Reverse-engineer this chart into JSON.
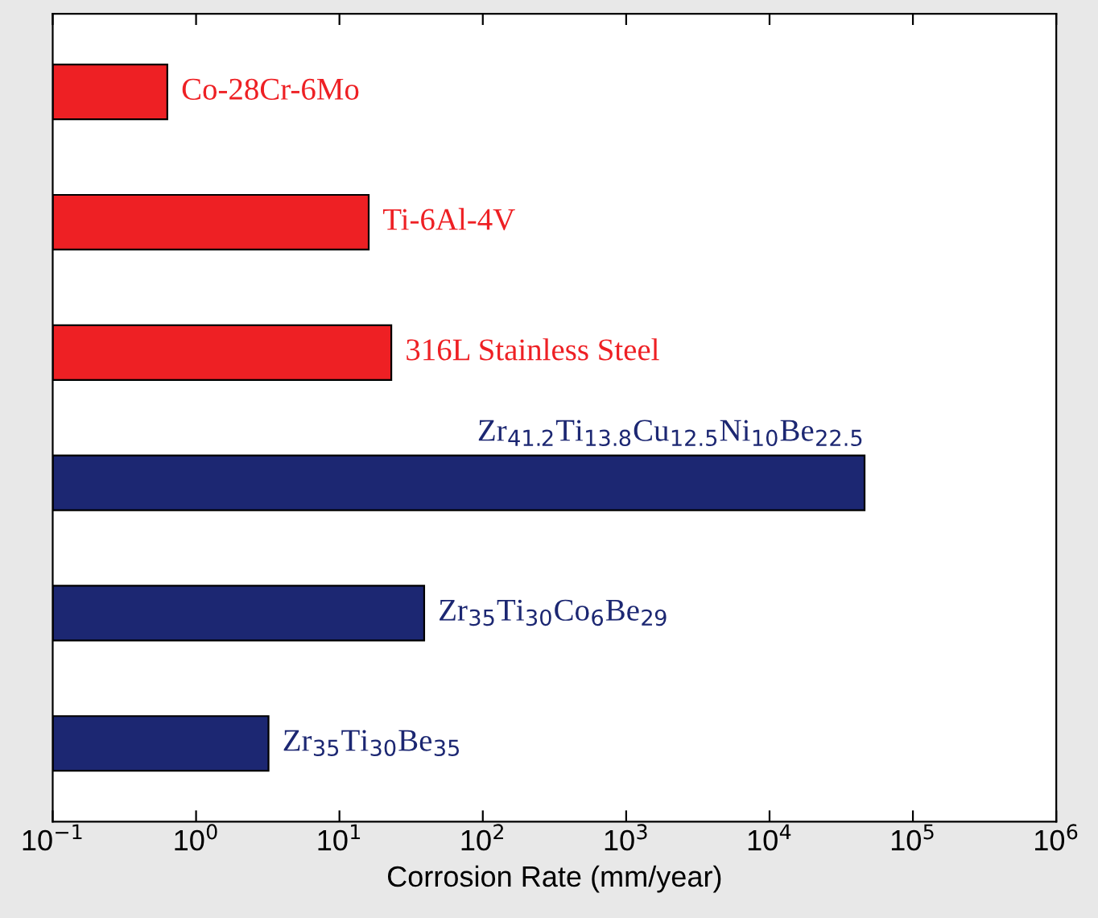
{
  "chart_data": {
    "type": "bar",
    "orientation": "horizontal",
    "xlabel": "Corrosion Rate (mm/year)",
    "categories": [
      "Co-28Cr-6Mo",
      "Ti-6Al-4V",
      "316L Stainless Steel",
      "Zr$_{41.2}$Ti$_{13.8}$Cu$_{12.5}$Ni$_{10}$Be$_{22.5}$",
      "Zr$_{35}$Ti$_{30}$Co$_{6}$Be$_{29}$",
      "Zr$_{35}$Ti$_{30}$Be$_{35}$"
    ],
    "values": [
      0.63,
      16,
      23,
      46000,
      39,
      3.2
    ],
    "colors": [
      "#ee2024",
      "#ee2024",
      "#ee2024",
      "#1c2772",
      "#1c2772",
      "#1c2772"
    ],
    "log": "x",
    "xlim": [
      0.1,
      1000000
    ],
    "xticks": [
      {
        "value": 0.1,
        "label": "10$^{−1}$"
      },
      {
        "value": 1,
        "label": "10$^{0}$"
      },
      {
        "value": 10,
        "label": "10$^{1}$"
      },
      {
        "value": 100,
        "label": "10$^{2}$"
      },
      {
        "value": 1000,
        "label": "10$^{3}$"
      },
      {
        "value": 10000,
        "label": "10$^{4}$"
      },
      {
        "value": 100000,
        "label": "10$^{5}$"
      },
      {
        "value": 1000000,
        "label": "10$^{6}$"
      }
    ],
    "tick_labels": "x",
    "grid": false,
    "legend": false
  }
}
